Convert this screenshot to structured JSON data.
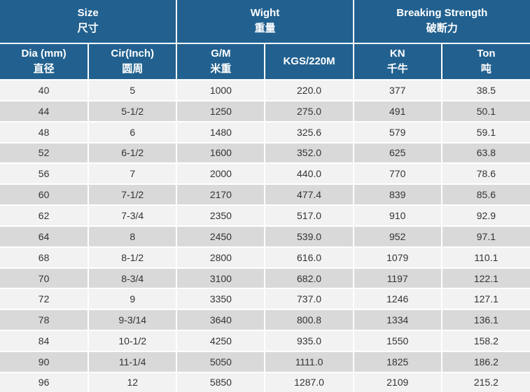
{
  "table": {
    "groups": [
      {
        "en": "Size",
        "zh": "尺寸"
      },
      {
        "en": "Wight",
        "zh": "重量"
      },
      {
        "en": "Breaking Strength",
        "zh": "破断力"
      }
    ],
    "columns": [
      {
        "key": "dia",
        "en": "Dia (mm)",
        "zh": "直径"
      },
      {
        "key": "cir",
        "en": "Cir(Inch)",
        "zh": "圆周"
      },
      {
        "key": "gm",
        "en": "G/M",
        "zh": "米重"
      },
      {
        "key": "kgs",
        "en": "KGS/220M",
        "zh": ""
      },
      {
        "key": "kn",
        "en": "KN",
        "zh": "千牛"
      },
      {
        "key": "ton",
        "en": "Ton",
        "zh": "吨"
      }
    ],
    "rows": [
      [
        "40",
        "5",
        "1000",
        "220.0",
        "377",
        "38.5"
      ],
      [
        "44",
        "5-1/2",
        "1250",
        "275.0",
        "491",
        "50.1"
      ],
      [
        "48",
        "6",
        "1480",
        "325.6",
        "579",
        "59.1"
      ],
      [
        "52",
        "6-1/2",
        "1600",
        "352.0",
        "625",
        "63.8"
      ],
      [
        "56",
        "7",
        "2000",
        "440.0",
        "770",
        "78.6"
      ],
      [
        "60",
        "7-1/2",
        "2170",
        "477.4",
        "839",
        "85.6"
      ],
      [
        "62",
        "7-3/4",
        "2350",
        "517.0",
        "910",
        "92.9"
      ],
      [
        "64",
        "8",
        "2450",
        "539.0",
        "952",
        "97.1"
      ],
      [
        "68",
        "8-1/2",
        "2800",
        "616.0",
        "1079",
        "110.1"
      ],
      [
        "70",
        "8-3/4",
        "3100",
        "682.0",
        "1197",
        "122.1"
      ],
      [
        "72",
        "9",
        "3350",
        "737.0",
        "1246",
        "127.1"
      ],
      [
        "78",
        "9-3/14",
        "3640",
        "800.8",
        "1334",
        "136.1"
      ],
      [
        "84",
        "10-1/2",
        "4250",
        "935.0",
        "1550",
        "158.2"
      ],
      [
        "90",
        "11-1/4",
        "5050",
        "1111.0",
        "1825",
        "186.2"
      ],
      [
        "96",
        "12",
        "5850",
        "1287.0",
        "2109",
        "215.2"
      ]
    ],
    "colors": {
      "header_bg": "#22618F",
      "header_text": "#FFFFFF",
      "row_odd_bg": "#F2F2F2",
      "row_even_bg": "#D9D9D9",
      "cell_text": "#333333",
      "grid_line": "#FFFFFF"
    }
  }
}
